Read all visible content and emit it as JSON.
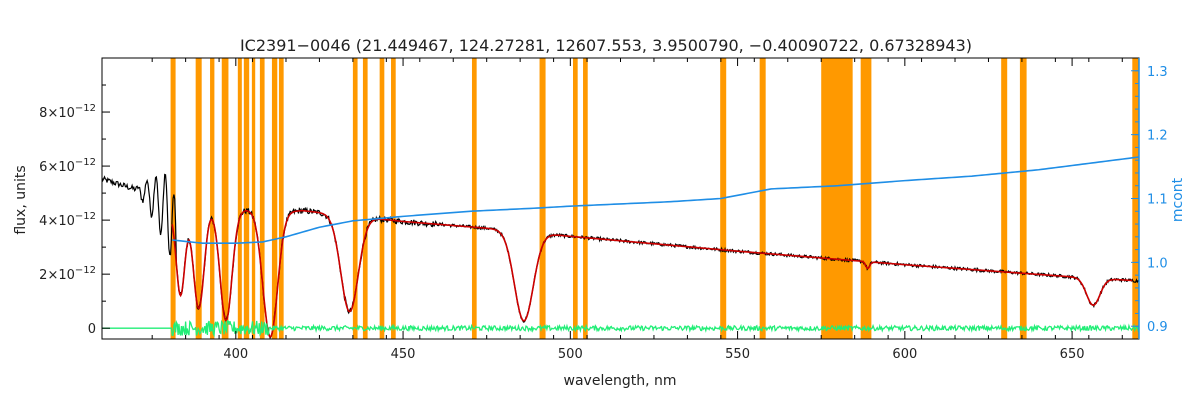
{
  "colors": {
    "frame": "#000000",
    "mask": "#ff9900",
    "observed": "#000000",
    "model": "#cc0000",
    "continuum": "#1f8ee6",
    "residual": "#22ee77",
    "background": "#ffffff"
  },
  "chart_data": {
    "type": "line",
    "title": "IC2391−0046    (21.449467, 124.27281, 12607.553, 3.9500790, −0.40090722, 0.67328943)",
    "xlabel": "wavelength, nm",
    "ylabel": "flux, units",
    "ylabel_right": "mcont",
    "xlim": [
      360,
      670
    ],
    "ylim": [
      -4e-13,
      1e-11
    ],
    "ylim_right": [
      0.88,
      1.32
    ],
    "x_ticks": [
      400,
      450,
      500,
      550,
      600,
      650
    ],
    "x_tick_labels": [
      "400",
      "450",
      "500",
      "550",
      "600",
      "650"
    ],
    "y_ticks": [
      0,
      2e-12,
      4e-12,
      6e-12,
      8e-12
    ],
    "y_tick_labels": [
      {
        "base": "0",
        "exp": ""
      },
      {
        "base": "2×10",
        "exp": "−12"
      },
      {
        "base": "4×10",
        "exp": "−12"
      },
      {
        "base": "6×10",
        "exp": "−12"
      },
      {
        "base": "8×10",
        "exp": "−12"
      }
    ],
    "y_right_ticks": [
      0.9,
      1.0,
      1.1,
      1.2,
      1.3
    ],
    "y_right_tick_labels": [
      "0.9",
      "1.0",
      "1.1",
      "1.2",
      "1.3"
    ],
    "continuum_flux_e12": [
      [
        360,
        5.52
      ],
      [
        370,
        5.14
      ],
      [
        375,
        4.9
      ],
      [
        378,
        4.5
      ],
      [
        380,
        4.3
      ],
      [
        384,
        4.55
      ],
      [
        390,
        4.4
      ],
      [
        395,
        4.55
      ],
      [
        398,
        4.3
      ],
      [
        404,
        4.4
      ],
      [
        409,
        4.6
      ],
      [
        412,
        4.3
      ],
      [
        420,
        4.35
      ],
      [
        450,
        3.95
      ],
      [
        480,
        3.65
      ],
      [
        500,
        3.4
      ],
      [
        550,
        2.85
      ],
      [
        600,
        2.35
      ],
      [
        650,
        1.9
      ],
      [
        670,
        1.75
      ]
    ],
    "pre_blue_wiggle": {
      "start": 370,
      "end": 382,
      "amplitude_e12": 1.8
    },
    "absorption_lines": [
      {
        "center": 383.5,
        "depth_e12": 3.3,
        "width": 1.3
      },
      {
        "center": 388.9,
        "depth_e12": 3.7,
        "width": 1.6
      },
      {
        "center": 397.0,
        "depth_e12": 4.1,
        "width": 1.8
      },
      {
        "center": 410.2,
        "depth_e12": 4.8,
        "width": 2.2
      },
      {
        "center": 434.0,
        "depth_e12": 3.55,
        "width": 2.6
      },
      {
        "center": 486.1,
        "depth_e12": 3.3,
        "width": 2.8
      },
      {
        "center": 588.9,
        "depth_e12": 0.25,
        "width": 0.6
      },
      {
        "center": 656.3,
        "depth_e12": 1.0,
        "width": 2.0
      }
    ],
    "model_range": [
      381,
      668
    ],
    "continuum_mcont": [
      [
        381,
        1.035
      ],
      [
        390,
        1.03
      ],
      [
        400,
        1.03
      ],
      [
        408,
        1.032
      ],
      [
        415,
        1.04
      ],
      [
        425,
        1.055
      ],
      [
        435,
        1.065
      ],
      [
        450,
        1.072
      ],
      [
        470,
        1.08
      ],
      [
        490,
        1.085
      ],
      [
        500,
        1.088
      ],
      [
        530,
        1.095
      ],
      [
        545,
        1.1
      ],
      [
        560,
        1.115
      ],
      [
        580,
        1.12
      ],
      [
        600,
        1.128
      ],
      [
        620,
        1.135
      ],
      [
        640,
        1.145
      ],
      [
        655,
        1.155
      ],
      [
        670,
        1.165
      ]
    ],
    "residual_range": [
      360,
      670
    ],
    "residual_noise_start": 381,
    "mask_bands": [
      [
        380.5,
        382.0
      ],
      [
        388.0,
        389.8
      ],
      [
        392.3,
        393.6
      ],
      [
        395.8,
        397.8
      ],
      [
        400.6,
        401.8
      ],
      [
        402.4,
        404.0
      ],
      [
        404.8,
        405.8
      ],
      [
        407.2,
        408.6
      ],
      [
        410.8,
        412.4
      ],
      [
        412.9,
        414.3
      ],
      [
        435.0,
        436.4
      ],
      [
        438.0,
        439.4
      ],
      [
        443.0,
        444.4
      ],
      [
        446.4,
        447.8
      ],
      [
        470.6,
        472.0
      ],
      [
        490.8,
        492.6
      ],
      [
        500.8,
        502.2
      ],
      [
        503.8,
        505.2
      ],
      [
        544.8,
        546.6
      ],
      [
        556.6,
        558.4
      ],
      [
        575.0,
        584.4
      ],
      [
        586.8,
        590.0
      ],
      [
        628.8,
        630.6
      ],
      [
        634.4,
        636.4
      ],
      [
        668.0,
        670.0
      ]
    ]
  }
}
